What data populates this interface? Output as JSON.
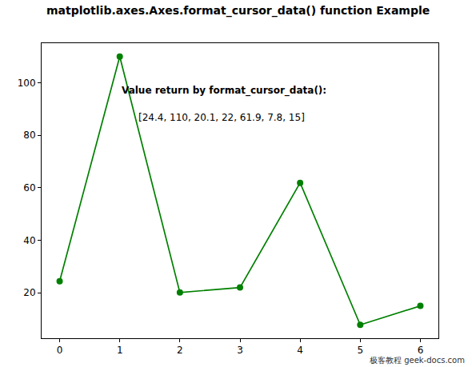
{
  "chart_data": {
    "type": "line",
    "title": "matplotlib.axes.Axes.format_cursor_data() function Example",
    "x": [
      0,
      1,
      2,
      3,
      4,
      5,
      6
    ],
    "values": [
      24.4,
      110,
      20.1,
      22,
      61.9,
      7.8,
      15
    ],
    "color": "#008000",
    "marker": "circle",
    "line_style": "solid",
    "xlim": [
      -0.3,
      6.3
    ],
    "xticks": [
      0,
      1,
      2,
      3,
      4,
      5,
      6
    ],
    "ylim": [
      2.69,
      115.1
    ],
    "yticks": [
      20,
      40,
      60,
      80,
      100
    ],
    "grid": false,
    "annotations": [
      {
        "text": "Value return by format_cursor_data():",
        "x": 1,
        "y": 96.9
      },
      {
        "text": "[24.4, 110, 20.1, 22, 61.9, 7.8, 15]",
        "x": 1.29,
        "y": 86.8
      },
      {
        "text": "极客教程 geek-docs.com"
      }
    ]
  }
}
